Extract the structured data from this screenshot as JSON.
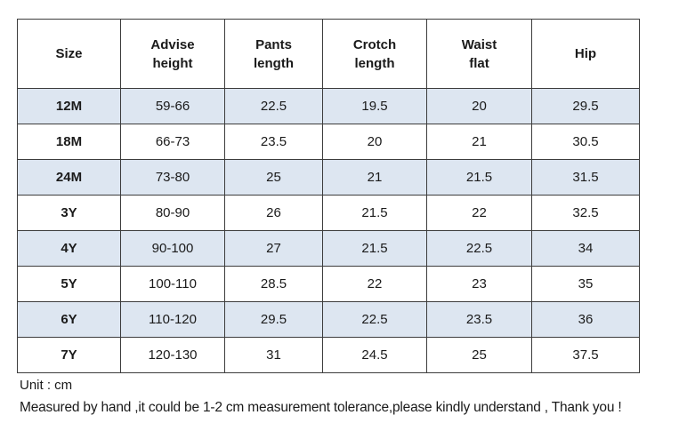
{
  "headers": [
    [
      "Size"
    ],
    [
      "Advise",
      "height"
    ],
    [
      "Pants",
      "length"
    ],
    [
      "Crotch",
      "length"
    ],
    [
      "Waist",
      "flat"
    ],
    [
      "Hip"
    ]
  ],
  "rows": [
    [
      "12M",
      "59-66",
      "22.5",
      "19.5",
      "20",
      "29.5"
    ],
    [
      "18M",
      "66-73",
      "23.5",
      "20",
      "21",
      "30.5"
    ],
    [
      "24M",
      "73-80",
      "25",
      "21",
      "21.5",
      "31.5"
    ],
    [
      "3Y",
      "80-90",
      "26",
      "21.5",
      "22",
      "32.5"
    ],
    [
      "4Y",
      "90-100",
      "27",
      "21.5",
      "22.5",
      "34"
    ],
    [
      "5Y",
      "100-110",
      "28.5",
      "22",
      "23",
      "35"
    ],
    [
      "6Y",
      "110-120",
      "29.5",
      "22.5",
      "23.5",
      "36"
    ],
    [
      "7Y",
      "120-130",
      "31",
      "24.5",
      "25",
      "37.5"
    ]
  ],
  "notes": {
    "unit": "Unit : cm",
    "measured": "Measured by hand ,it could be 1-2 cm measurement tolerance,please kindly understand , Thank you !"
  },
  "colors": {
    "shaded_row": "#dde6f1",
    "border": "#3c3c3c"
  }
}
